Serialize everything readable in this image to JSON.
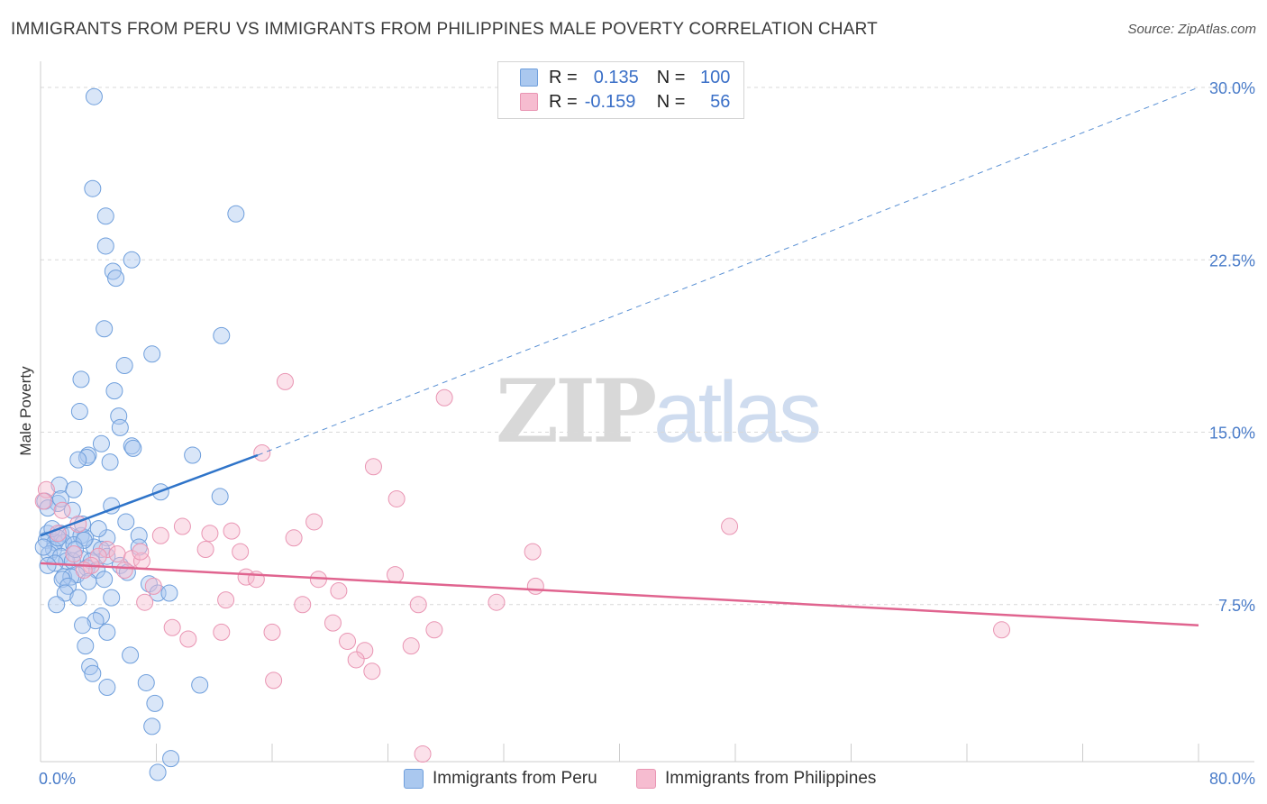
{
  "title": "IMMIGRANTS FROM PERU VS IMMIGRANTS FROM PHILIPPINES MALE POVERTY CORRELATION CHART",
  "source": "Source: ZipAtlas.com",
  "watermark": {
    "zip": "ZIP",
    "atlas": "atlas"
  },
  "legend": {
    "peru": {
      "r_label": "R =",
      "r_value": "0.135",
      "n_label": "N =",
      "n_value": "100"
    },
    "philippines": {
      "r_label": "R =",
      "r_value": "-0.159",
      "n_label": "N =",
      "n_value": "56"
    }
  },
  "bottom_legend": {
    "peru": "Immigrants from Peru",
    "philippines": "Immigrants from Philippines"
  },
  "colors": {
    "peru_fill": "#aac8ef",
    "peru_stroke": "#6f9fdc",
    "peru_line": "#2f74c9",
    "phil_fill": "#f6bcd0",
    "phil_stroke": "#e995b3",
    "phil_line": "#e0648f",
    "grid": "#d9d9d9",
    "tick_text": "#4a7cc9"
  },
  "chart_data": {
    "type": "scatter",
    "title": "IMMIGRANTS FROM PERU VS IMMIGRANTS FROM PHILIPPINES MALE POVERTY CORRELATION CHART",
    "ylabel": "Male Poverty",
    "xlabel": "",
    "xlim": [
      0,
      80
    ],
    "ylim": [
      0,
      30
    ],
    "x_tick_labels": [
      "0.0%",
      "80.0%"
    ],
    "y_ticks": [
      7.5,
      15.0,
      22.5,
      30.0
    ],
    "y_tick_labels": [
      "7.5%",
      "15.0%",
      "22.5%",
      "30.0%"
    ],
    "grid": true,
    "series": [
      {
        "name": "Immigrants from Peru",
        "R": 0.135,
        "N": 100,
        "trend": {
          "x": [
            0,
            15
          ],
          "y": [
            10.5,
            14.0
          ],
          "dashed_extension_to": [
            80,
            30.0
          ]
        },
        "points": [
          [
            3.7,
            29.6
          ],
          [
            3.6,
            25.6
          ],
          [
            13.5,
            24.5
          ],
          [
            4.5,
            24.4
          ],
          [
            4.5,
            23.1
          ],
          [
            6.3,
            22.5
          ],
          [
            5.0,
            22.0
          ],
          [
            5.2,
            21.7
          ],
          [
            4.4,
            19.5
          ],
          [
            12.5,
            19.2
          ],
          [
            7.7,
            18.4
          ],
          [
            5.8,
            17.9
          ],
          [
            2.8,
            17.3
          ],
          [
            5.1,
            16.8
          ],
          [
            2.7,
            15.9
          ],
          [
            5.4,
            15.7
          ],
          [
            5.5,
            15.2
          ],
          [
            4.2,
            14.5
          ],
          [
            6.3,
            14.4
          ],
          [
            6.4,
            14.3
          ],
          [
            3.3,
            14.0
          ],
          [
            10.5,
            14.0
          ],
          [
            3.2,
            13.9
          ],
          [
            2.6,
            13.8
          ],
          [
            4.8,
            13.7
          ],
          [
            1.3,
            12.7
          ],
          [
            2.3,
            12.5
          ],
          [
            8.3,
            12.4
          ],
          [
            12.4,
            12.2
          ],
          [
            0.3,
            12.0
          ],
          [
            1.2,
            11.9
          ],
          [
            0.5,
            11.7
          ],
          [
            4.9,
            11.8
          ],
          [
            2.2,
            11.6
          ],
          [
            5.9,
            11.1
          ],
          [
            0.5,
            10.6
          ],
          [
            1.4,
            10.6
          ],
          [
            2.0,
            10.5
          ],
          [
            2.8,
            10.5
          ],
          [
            4.6,
            10.4
          ],
          [
            3.1,
            10.4
          ],
          [
            6.8,
            10.5
          ],
          [
            0.4,
            10.3
          ],
          [
            1.0,
            10.2
          ],
          [
            1.6,
            10.2
          ],
          [
            2.3,
            10.1
          ],
          [
            3.7,
            10.0
          ],
          [
            4.2,
            9.9
          ],
          [
            6.8,
            10.0
          ],
          [
            0.9,
            9.9
          ],
          [
            0.6,
            9.7
          ],
          [
            1.4,
            9.6
          ],
          [
            2.8,
            9.5
          ],
          [
            4.6,
            9.6
          ],
          [
            1.8,
            9.4
          ],
          [
            2.2,
            9.4
          ],
          [
            3.5,
            9.4
          ],
          [
            1.0,
            9.3
          ],
          [
            0.5,
            9.2
          ],
          [
            3.2,
            9.1
          ],
          [
            3.9,
            9.0
          ],
          [
            2.5,
            8.8
          ],
          [
            1.6,
            8.7
          ],
          [
            2.1,
            8.7
          ],
          [
            4.4,
            8.6
          ],
          [
            3.3,
            8.5
          ],
          [
            1.5,
            8.6
          ],
          [
            1.9,
            8.3
          ],
          [
            7.5,
            8.4
          ],
          [
            8.1,
            8.0
          ],
          [
            8.9,
            8.0
          ],
          [
            1.7,
            8.0
          ],
          [
            2.6,
            7.8
          ],
          [
            4.9,
            7.8
          ],
          [
            1.1,
            7.5
          ],
          [
            4.2,
            7.0
          ],
          [
            3.8,
            6.8
          ],
          [
            2.9,
            6.6
          ],
          [
            4.6,
            6.3
          ],
          [
            3.1,
            5.7
          ],
          [
            6.2,
            5.3
          ],
          [
            3.4,
            4.8
          ],
          [
            3.6,
            4.5
          ],
          [
            7.3,
            4.1
          ],
          [
            4.6,
            3.9
          ],
          [
            11.0,
            4.0
          ],
          [
            7.9,
            3.2
          ],
          [
            7.7,
            2.2
          ],
          [
            9.0,
            0.8
          ],
          [
            8.1,
            0.2
          ],
          [
            1.4,
            12.1
          ],
          [
            0.8,
            10.8
          ],
          [
            3.0,
            10.3
          ],
          [
            5.5,
            9.2
          ],
          [
            2.4,
            9.9
          ],
          [
            1.2,
            10.4
          ],
          [
            0.2,
            10.0
          ],
          [
            2.9,
            11.0
          ],
          [
            4.0,
            10.8
          ],
          [
            6.0,
            8.9
          ]
        ]
      },
      {
        "name": "Immigrants from Philippines",
        "R": -0.159,
        "N": 56,
        "trend": {
          "x": [
            0,
            80
          ],
          "y": [
            9.3,
            6.6
          ]
        },
        "points": [
          [
            0.4,
            12.5
          ],
          [
            0.2,
            12.0
          ],
          [
            1.5,
            11.6
          ],
          [
            2.6,
            11.0
          ],
          [
            16.9,
            17.2
          ],
          [
            27.9,
            16.5
          ],
          [
            15.3,
            14.1
          ],
          [
            23.0,
            13.5
          ],
          [
            24.6,
            12.1
          ],
          [
            18.9,
            11.1
          ],
          [
            47.6,
            10.9
          ],
          [
            9.8,
            10.9
          ],
          [
            11.7,
            10.6
          ],
          [
            8.3,
            10.5
          ],
          [
            13.2,
            10.7
          ],
          [
            17.5,
            10.4
          ],
          [
            4.6,
            9.9
          ],
          [
            11.4,
            9.9
          ],
          [
            13.8,
            9.8
          ],
          [
            34.0,
            9.8
          ],
          [
            5.3,
            9.7
          ],
          [
            2.3,
            9.7
          ],
          [
            4.0,
            9.6
          ],
          [
            6.3,
            9.5
          ],
          [
            3.5,
            9.2
          ],
          [
            5.8,
            9.0
          ],
          [
            7.0,
            9.4
          ],
          [
            14.2,
            8.7
          ],
          [
            14.9,
            8.6
          ],
          [
            24.5,
            8.8
          ],
          [
            19.2,
            8.6
          ],
          [
            20.6,
            8.1
          ],
          [
            34.2,
            8.3
          ],
          [
            7.8,
            8.3
          ],
          [
            7.2,
            7.6
          ],
          [
            12.8,
            7.7
          ],
          [
            18.1,
            7.5
          ],
          [
            26.1,
            7.5
          ],
          [
            31.5,
            7.6
          ],
          [
            9.1,
            6.5
          ],
          [
            10.2,
            6.0
          ],
          [
            12.5,
            6.3
          ],
          [
            16.0,
            6.3
          ],
          [
            20.2,
            6.7
          ],
          [
            21.2,
            5.9
          ],
          [
            25.6,
            5.7
          ],
          [
            27.2,
            6.4
          ],
          [
            22.4,
            5.5
          ],
          [
            21.8,
            5.1
          ],
          [
            22.9,
            4.6
          ],
          [
            16.1,
            4.2
          ],
          [
            26.4,
            1.0
          ],
          [
            66.4,
            6.4
          ],
          [
            1.2,
            10.6
          ],
          [
            6.9,
            9.8
          ],
          [
            3.0,
            9.0
          ]
        ]
      }
    ]
  }
}
